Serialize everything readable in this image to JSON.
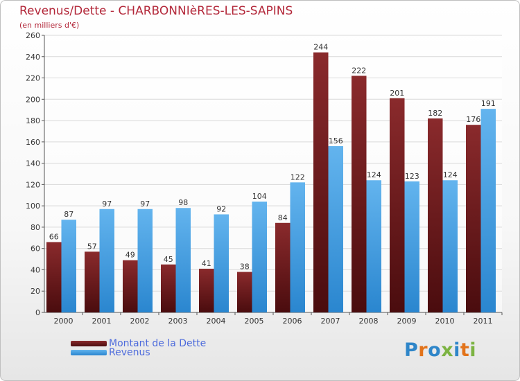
{
  "chart_data": {
    "type": "bar",
    "title": "Revenus/Dette - CHARBONNIèRES-LES-SAPINS",
    "subtitle": "(en milliers d'€)",
    "categories": [
      "2000",
      "2001",
      "2002",
      "2003",
      "2004",
      "2005",
      "2006",
      "2007",
      "2008",
      "2009",
      "2010",
      "2011"
    ],
    "series": [
      {
        "name": "Montant de la Dette",
        "color": "#6b1a1c",
        "values": [
          66,
          57,
          49,
          45,
          41,
          38,
          84,
          244,
          222,
          201,
          182,
          176
        ]
      },
      {
        "name": "Revenus",
        "color": "#3d9ae0",
        "values": [
          87,
          97,
          97,
          98,
          92,
          104,
          122,
          156,
          124,
          123,
          124,
          191
        ]
      }
    ],
    "ylim": [
      0,
      260
    ],
    "yticks": [
      0,
      20,
      40,
      60,
      80,
      100,
      120,
      140,
      160,
      180,
      200,
      220,
      240,
      260
    ],
    "grid": true,
    "legend_position": "bottom-left"
  },
  "logo": {
    "text": "Proxiti",
    "colors": [
      "#2f86c9",
      "#e2731a",
      "#2f86c9",
      "#7cb342",
      "#2f86c9",
      "#e2731a",
      "#7cb342"
    ]
  }
}
